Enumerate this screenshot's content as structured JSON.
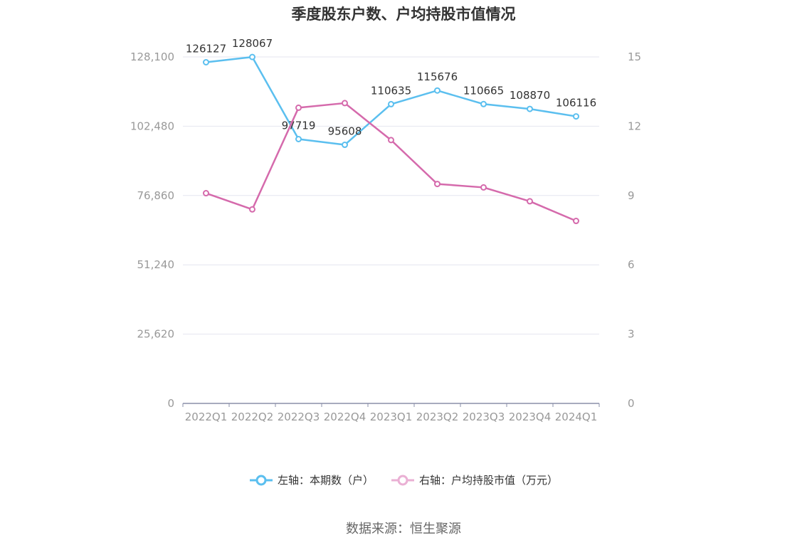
{
  "title": "季度股东户数、户均持股市值情况",
  "source": "数据来源：恒生聚源",
  "colors": {
    "left_series": "#5bbfef",
    "right_series": "#d56aac",
    "grid": "#e4e6ef",
    "axis_text": "#999999",
    "label_text": "#333333"
  },
  "legend": {
    "left_series_label": "左轴：本期数（户）",
    "right_series_label": "右轴：户均持股市值（万元）"
  },
  "chart_data": {
    "type": "line",
    "categories": [
      "2022Q1",
      "2022Q2",
      "2022Q3",
      "2022Q4",
      "2023Q1",
      "2023Q2",
      "2023Q3",
      "2023Q4",
      "2024Q1"
    ],
    "left_axis": {
      "ticks": [
        "0",
        "25,620",
        "51,240",
        "76,860",
        "102,480",
        "128,100"
      ],
      "ylim": [
        0,
        128100
      ]
    },
    "right_axis": {
      "ticks": [
        "0",
        "3",
        "6",
        "9",
        "12",
        "15"
      ],
      "ylim": [
        0,
        15
      ]
    },
    "series": [
      {
        "name": "左轴：本期数（户）",
        "axis": "left",
        "values": [
          126127,
          128067,
          97719,
          95608,
          110635,
          115676,
          110665,
          108870,
          106116
        ],
        "labels": [
          "126127",
          "128067",
          "97719",
          "95608",
          "110635",
          "115676",
          "110665",
          "108870",
          "106116"
        ]
      },
      {
        "name": "右轴：户均持股市值（万元）",
        "axis": "right",
        "values": [
          9.1,
          8.4,
          12.8,
          13.0,
          11.4,
          9.5,
          9.35,
          8.75,
          7.9
        ]
      }
    ],
    "grid": true,
    "legend_position": "bottom"
  }
}
